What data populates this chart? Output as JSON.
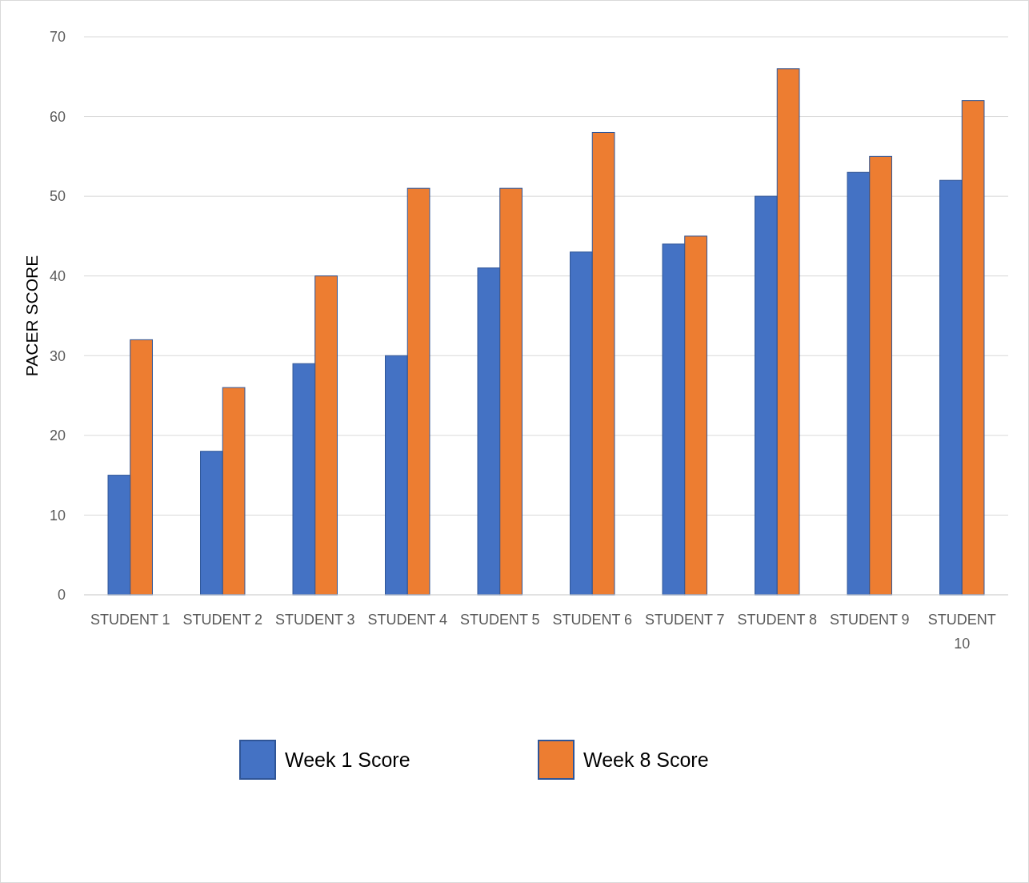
{
  "chart_data": {
    "type": "bar",
    "ylabel": "PACER SCORE",
    "categories": [
      "STUDENT 1",
      "STUDENT 2",
      "STUDENT 3",
      "STUDENT 4",
      "STUDENT 5",
      "STUDENT 6",
      "STUDENT 7",
      "STUDENT 8",
      "STUDENT 9",
      "STUDENT 10"
    ],
    "series": [
      {
        "name": "Week 1 Score",
        "color": "#4472c4",
        "values": [
          15,
          18,
          29,
          30,
          41,
          43,
          44,
          50,
          53,
          52
        ]
      },
      {
        "name": "Week 8 Score",
        "color": "#ed7d31",
        "values": [
          32,
          26,
          40,
          51,
          51,
          58,
          45,
          66,
          55,
          62
        ]
      }
    ],
    "ylim": [
      0,
      70
    ],
    "yticks": [
      0,
      10,
      20,
      30,
      40,
      50,
      60,
      70
    ],
    "grid": "y",
    "legend": "bottom"
  }
}
